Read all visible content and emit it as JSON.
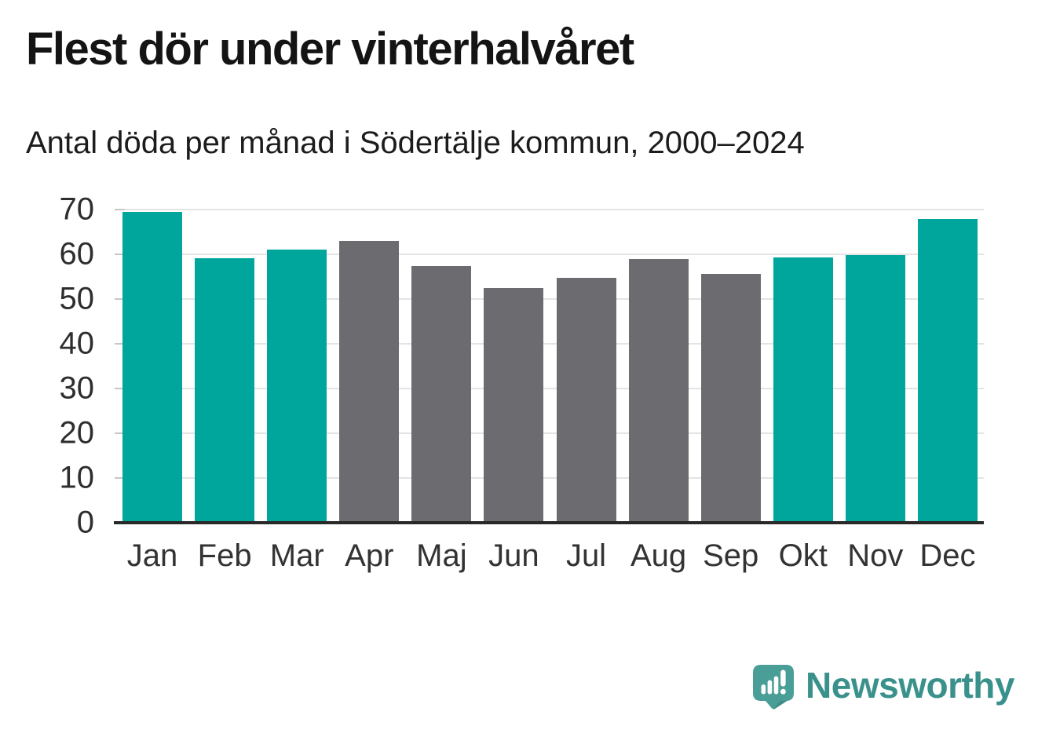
{
  "header": {
    "title": "Flest dör under vinterhalvåret",
    "subtitle": "Antal döda per månad i Södertälje kommun, 2000–2024"
  },
  "chart_data": {
    "type": "bar",
    "title": "Flest dör under vinterhalvåret",
    "subtitle": "Antal döda per månad i Södertälje kommun, 2000–2024",
    "categories": [
      "Jan",
      "Feb",
      "Mar",
      "Apr",
      "Maj",
      "Jun",
      "Jul",
      "Aug",
      "Sep",
      "Okt",
      "Nov",
      "Dec"
    ],
    "values": [
      69.5,
      59.1,
      61.1,
      63.0,
      57.4,
      52.5,
      54.8,
      59.0,
      55.7,
      59.3,
      59.8,
      67.9
    ],
    "seasons": [
      "winter",
      "winter",
      "winter",
      "summer",
      "summer",
      "summer",
      "summer",
      "summer",
      "summer",
      "winter",
      "winter",
      "winter"
    ],
    "colors": {
      "winter": "#00A69B",
      "summer": "#6B6B70"
    },
    "xlabel": "",
    "ylabel": "",
    "ylim": [
      0,
      70
    ],
    "yticks": [
      0,
      10,
      20,
      30,
      40,
      50,
      60,
      70
    ],
    "grid": true,
    "legend": false
  },
  "footer": {
    "brand": "Newsworthy",
    "brand_color": "#3a918c",
    "logo_icon": "newsworthy-speech-bubble-chart-icon",
    "logo_colors": {
      "bubble": "#4A9E98",
      "bubble_shade": "#3E8C86",
      "glyphs": "#ffffff"
    }
  }
}
